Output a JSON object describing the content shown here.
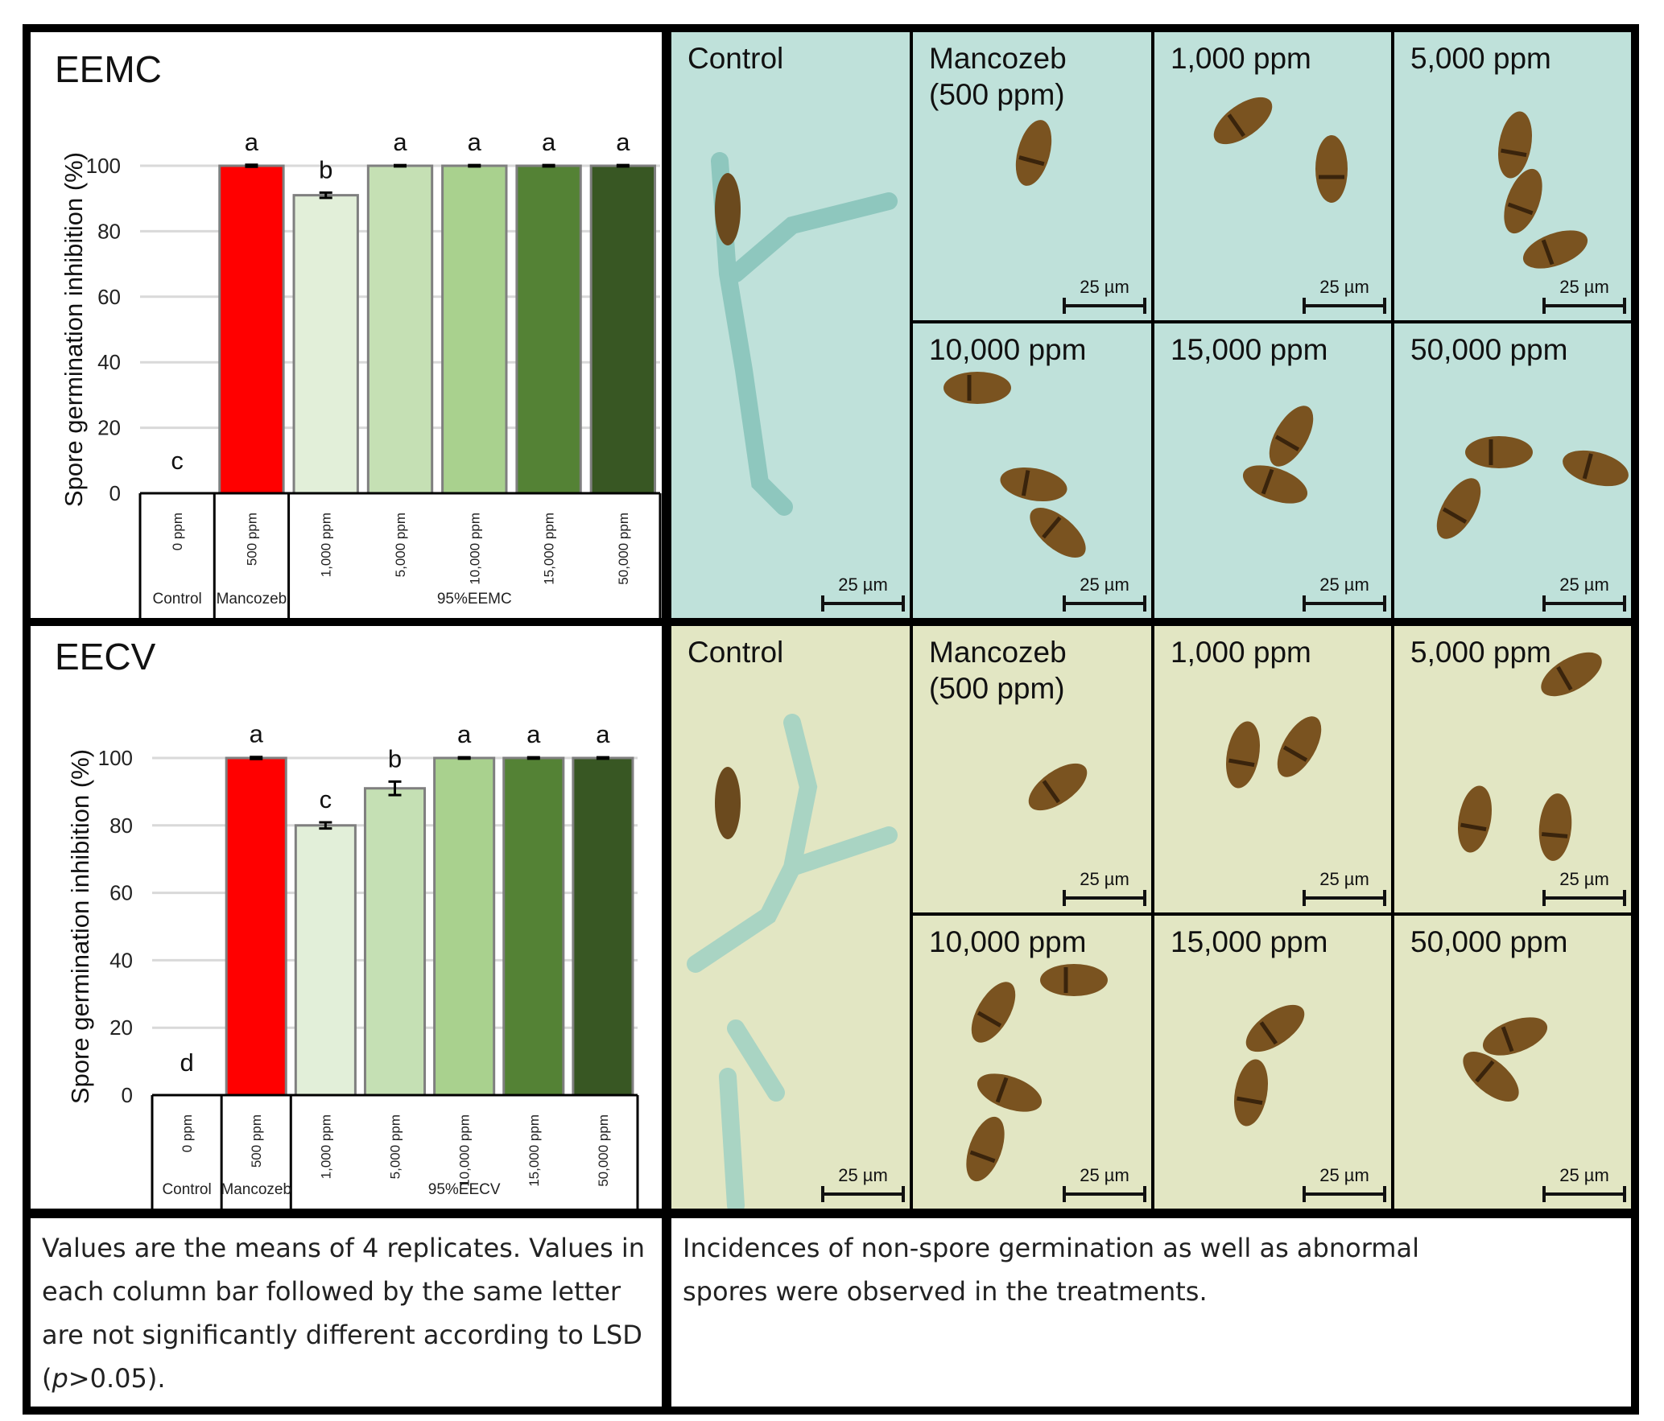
{
  "charts": [
    {
      "panel_label": "EEMC",
      "chart_data": {
        "type": "bar",
        "ylabel": "Spore germination inhibition (%)",
        "ylim": [
          0,
          100
        ],
        "yticks": [
          0,
          20,
          40,
          60,
          80,
          100
        ],
        "grid": true,
        "categories": [
          "0 ppm",
          "500 ppm",
          "1,000 ppm",
          "5,000 ppm",
          "10,000 ppm",
          "15,000 ppm",
          "50,000 ppm"
        ],
        "values": [
          0,
          100,
          91,
          100,
          100,
          100,
          100
        ],
        "errors": [
          0,
          0.3,
          0.8,
          0.2,
          0.2,
          0.2,
          0.2
        ],
        "letters": [
          "c",
          "a",
          "b",
          "a",
          "a",
          "a",
          "a"
        ],
        "colors": [
          "#ffffff",
          "#ff0000",
          "#e2efd9",
          "#c5e0b4",
          "#a9d18e",
          "#548235",
          "#385723"
        ],
        "groups": [
          {
            "label": "Control",
            "span": [
              0,
              0
            ]
          },
          {
            "label": "Mancozeb",
            "span": [
              1,
              1
            ]
          },
          {
            "label": "95%EEMC",
            "span": [
              2,
              6
            ]
          }
        ]
      }
    },
    {
      "panel_label": "EECV",
      "chart_data": {
        "type": "bar",
        "ylabel": "Spore germination inhibition (%)",
        "ylim": [
          0,
          100
        ],
        "yticks": [
          0,
          20,
          40,
          60,
          80,
          100
        ],
        "grid": true,
        "categories": [
          "0 ppm",
          "500 ppm",
          "1,000 ppm",
          "5,000 ppm",
          "10,000 ppm",
          "15,000 ppm",
          "50,000 ppm"
        ],
        "values": [
          0,
          100,
          80,
          91,
          100,
          100,
          100
        ],
        "errors": [
          0,
          0.3,
          0.9,
          2.0,
          0.2,
          0.2,
          0.2
        ],
        "letters": [
          "d",
          "a",
          "c",
          "b",
          "a",
          "a",
          "a"
        ],
        "colors": [
          "#ffffff",
          "#ff0000",
          "#e2efd9",
          "#c5e0b4",
          "#a9d18e",
          "#548235",
          "#385723"
        ],
        "groups": [
          {
            "label": "Control",
            "span": [
              0,
              0
            ]
          },
          {
            "label": "Mancozeb",
            "span": [
              1,
              1
            ]
          },
          {
            "label": "95%EECV",
            "span": [
              2,
              6
            ]
          }
        ]
      }
    }
  ],
  "micrographs": [
    {
      "background": "#bfe1da",
      "hypha_color": "#8ec7be",
      "cells": [
        {
          "label": "Control",
          "scale": "25 µm"
        },
        {
          "label": "Mancozeb\n(500 ppm)",
          "scale": "25 µm"
        },
        {
          "label": "1,000 ppm",
          "scale": "25 µm"
        },
        {
          "label": "5,000 ppm",
          "scale": "25 µm"
        },
        {
          "label": "10,000 ppm",
          "scale": "25 µm"
        },
        {
          "label": "15,000 ppm",
          "scale": "25 µm"
        },
        {
          "label": "50,000 ppm",
          "scale": "25 µm"
        }
      ]
    },
    {
      "background": "#e2e6c3",
      "hypha_color": "#a9d4c3",
      "cells": [
        {
          "label": "Control",
          "scale": "25 µm"
        },
        {
          "label": "Mancozeb\n(500 ppm)",
          "scale": "25 µm"
        },
        {
          "label": "1,000 ppm",
          "scale": "25 µm"
        },
        {
          "label": "5,000 ppm",
          "scale": "25 µm"
        },
        {
          "label": "10,000 ppm",
          "scale": "25 µm"
        },
        {
          "label": "15,000 ppm",
          "scale": "25 µm"
        },
        {
          "label": "50,000 ppm",
          "scale": "25 µm"
        }
      ]
    }
  ],
  "notes": {
    "left_main": "Values are the means of 4 replicates. Values in each column bar followed by the same letter are not significantly different according to LSD (",
    "left_p": "p",
    "left_tail": ">0.05).",
    "right": "Incidences of non-spore germination as well as abnormal spores were observed in the treatments."
  }
}
